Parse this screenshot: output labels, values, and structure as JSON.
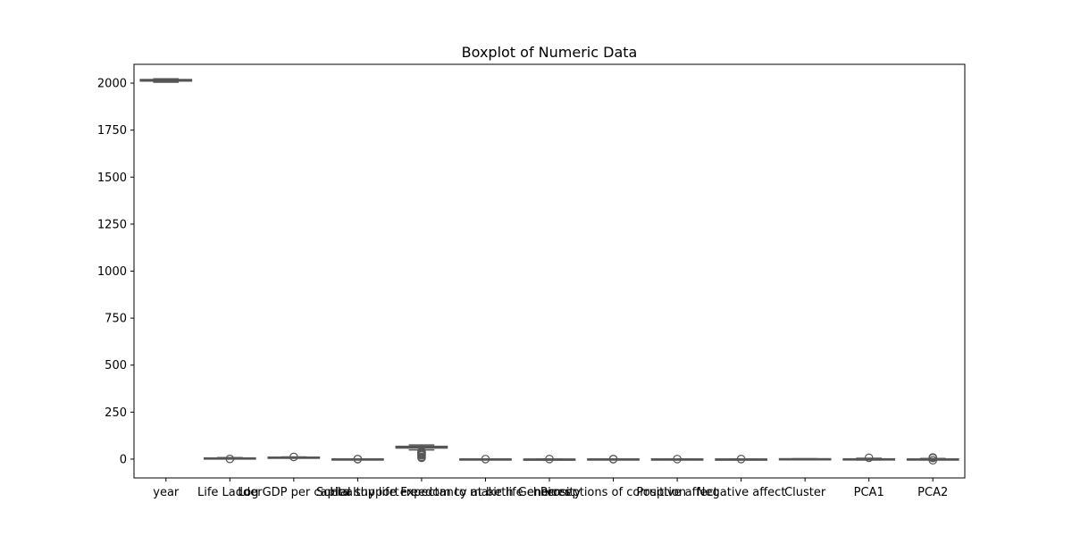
{
  "chart_data": {
    "type": "box",
    "title": "Boxplot of Numeric Data",
    "xlabel": "",
    "ylabel": "",
    "ylim": [
      -100,
      2100
    ],
    "yticks": [
      0,
      250,
      500,
      750,
      1000,
      1250,
      1500,
      1750,
      2000
    ],
    "grid": false,
    "box_color": "#555555",
    "categories": [
      "year",
      "Life Ladder",
      "Log GDP per capita",
      "Social support",
      "Healthy life expectancy at birth",
      "Freedom to make life choices",
      "Generosity",
      "Perceptions of corruption",
      "Positive affect",
      "Negative affect",
      "Cluster",
      "PCA1",
      "PCA2"
    ],
    "boxes": [
      {
        "whisker_low": 2005,
        "q1": 2011,
        "median": 2015,
        "q3": 2019,
        "whisker_high": 2023,
        "outliers": []
      },
      {
        "whisker_low": 2.4,
        "q1": 4.6,
        "median": 5.4,
        "q3": 6.2,
        "whisker_high": 8.0,
        "outliers": [
          1.3
        ]
      },
      {
        "whisker_low": 5.5,
        "q1": 8.5,
        "median": 9.5,
        "q3": 10.4,
        "whisker_high": 11.7,
        "outliers": [
          11.9
        ]
      },
      {
        "whisker_low": 0.45,
        "q1": 0.75,
        "median": 0.83,
        "q3": 0.9,
        "whisker_high": 0.99,
        "outliers": [
          0.3,
          0.25
        ]
      },
      {
        "whisker_low": 49,
        "q1": 59,
        "median": 65,
        "q3": 68,
        "whisker_high": 75,
        "outliers": [
          40,
          35,
          30,
          25,
          20,
          12,
          7
        ]
      },
      {
        "whisker_low": 0.45,
        "q1": 0.66,
        "median": 0.77,
        "q3": 0.86,
        "whisker_high": 0.99,
        "outliers": [
          0.3
        ]
      },
      {
        "whisker_low": -0.3,
        "q1": -0.11,
        "median": -0.02,
        "q3": 0.09,
        "whisker_high": 0.35,
        "outliers": [
          0.6
        ]
      },
      {
        "whisker_low": 0.45,
        "q1": 0.69,
        "median": 0.8,
        "q3": 0.86,
        "whisker_high": 0.98,
        "outliers": [
          0.2,
          0.1
        ]
      },
      {
        "whisker_low": 0.3,
        "q1": 0.57,
        "median": 0.66,
        "q3": 0.74,
        "whisker_high": 0.88,
        "outliers": [
          0.2
        ]
      },
      {
        "whisker_low": 0.08,
        "q1": 0.21,
        "median": 0.26,
        "q3": 0.32,
        "whisker_high": 0.48,
        "outliers": [
          0.6
        ]
      },
      {
        "whisker_low": 0,
        "q1": 0,
        "median": 1,
        "q3": 2,
        "whisker_high": 2,
        "outliers": []
      },
      {
        "whisker_low": -4.5,
        "q1": -1.3,
        "median": 0,
        "q3": 1.4,
        "whisker_high": 4.6,
        "outliers": [
          7
        ]
      },
      {
        "whisker_low": -3.5,
        "q1": -0.8,
        "median": 0,
        "q3": 0.8,
        "whisker_high": 3.5,
        "outliers": [
          -6,
          6,
          9
        ]
      }
    ]
  }
}
